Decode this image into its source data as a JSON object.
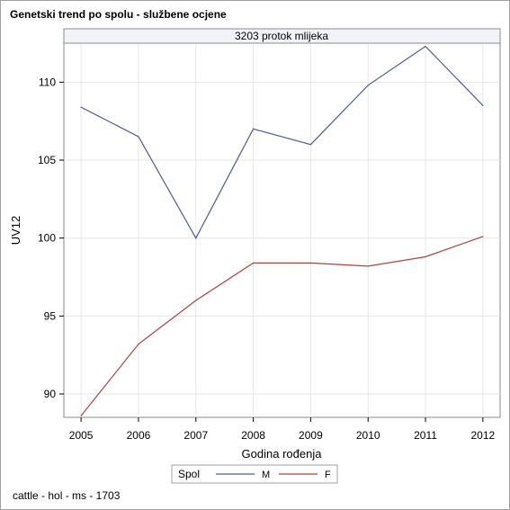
{
  "title": "Genetski trend po spolu - službene ocjene",
  "footnote": "cattle - hol - ms - 1703",
  "chart_data": {
    "type": "line",
    "panel_title": "3203 protok mlijeka",
    "xlabel": "Godina rođenja",
    "ylabel": "UV12",
    "x": [
      2005,
      2006,
      2007,
      2008,
      2009,
      2010,
      2011,
      2012
    ],
    "xticks": [
      "2005",
      "2006",
      "2007",
      "2008",
      "2009",
      "2010",
      "2011",
      "2012"
    ],
    "yticks": [
      90,
      95,
      100,
      105,
      110
    ],
    "ylim": [
      88.5,
      112.5
    ],
    "xlim": [
      2004.7,
      2012.3
    ],
    "grid": true,
    "legend": {
      "title": "Spol",
      "placement": "bottom-center"
    },
    "series": [
      {
        "name": "M",
        "color": "#4b5a9a",
        "values": [
          108.4,
          106.5,
          100.0,
          107.0,
          106.0,
          109.8,
          112.3,
          108.5
        ]
      },
      {
        "name": "F",
        "color": "#a8453b",
        "values": [
          88.6,
          93.2,
          96.0,
          98.4,
          98.4,
          98.2,
          98.8,
          100.1
        ]
      }
    ]
  }
}
